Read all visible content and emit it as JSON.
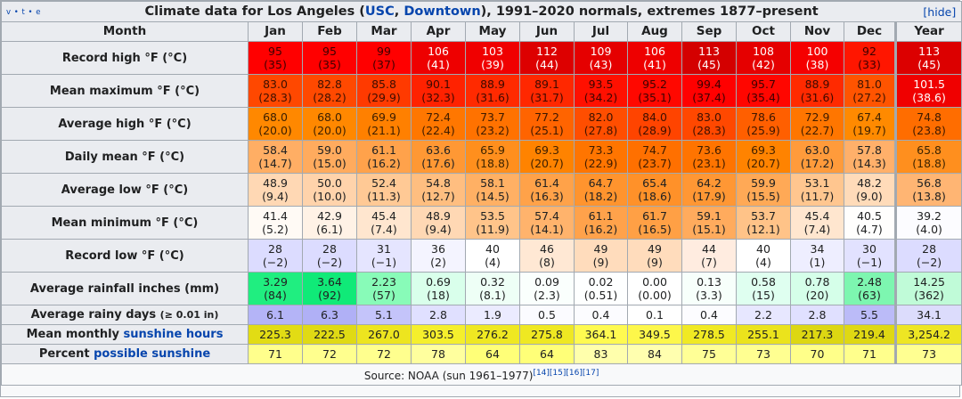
{
  "title": {
    "vte": "v • t • e",
    "prefix": "Climate data for Los Angeles (",
    "link1": "USC",
    "sep": ", ",
    "link2": "Downtown",
    "suffix": "), 1991–2020 normals, extremes 1877–present",
    "hide": "[hide]"
  },
  "header": {
    "label": "Month",
    "months": [
      "Jan",
      "Feb",
      "Mar",
      "Apr",
      "May",
      "Jun",
      "Jul",
      "Aug",
      "Sep",
      "Oct",
      "Nov",
      "Dec"
    ],
    "year": "Year"
  },
  "rows": [
    {
      "label": "Record high °F (°C)",
      "values": [
        "95",
        "95",
        "99",
        "106",
        "103",
        "112",
        "109",
        "106",
        "113",
        "108",
        "100",
        "92",
        "113"
      ],
      "sub": [
        "(35)",
        "(35)",
        "(37)",
        "(41)",
        "(39)",
        "(44)",
        "(43)",
        "(41)",
        "(45)",
        "(42)",
        "(38)",
        "(33)",
        "(45)"
      ],
      "colors": [
        "#ff0000",
        "#ff0000",
        "#ff0000",
        "#ee0000",
        "#f00000",
        "#dd0000",
        "#e50000",
        "#ee0000",
        "#d40000",
        "#e50000",
        "#f50000",
        "#ff1600",
        "#dc0000"
      ],
      "text_colors": [
        "#3d0000",
        "#3d0000",
        "#3d0000",
        "#ffffff",
        "#ffffff",
        "#ffffff",
        "#ffffff",
        "#ffffff",
        "#ffffff",
        "#ffffff",
        "#ffffff",
        "#3d0000",
        "#ffffff"
      ]
    },
    {
      "label": "Mean maximum °F (°C)",
      "values": [
        "83.0",
        "82.8",
        "85.8",
        "90.1",
        "88.9",
        "89.1",
        "93.5",
        "95.2",
        "99.4",
        "95.7",
        "88.9",
        "81.0",
        "101.5"
      ],
      "sub": [
        "(28.3)",
        "(28.2)",
        "(29.9)",
        "(32.3)",
        "(31.6)",
        "(31.7)",
        "(34.2)",
        "(35.1)",
        "(37.4)",
        "(35.4)",
        "(31.6)",
        "(27.2)",
        "(38.6)"
      ],
      "colors": [
        "#ff4800",
        "#ff4900",
        "#ff3a00",
        "#ff2200",
        "#ff2a00",
        "#ff2800",
        "#ff1000",
        "#ff0800",
        "#ff0000",
        "#ff0600",
        "#ff2a00",
        "#ff5400",
        "#f00000"
      ],
      "text_colors": [
        "#3d1000",
        "#3d1000",
        "#3d0d00",
        "#3d0800",
        "#3d0900",
        "#3d0900",
        "#3d0400",
        "#3d0200",
        "#3d0000",
        "#3d0100",
        "#3d0900",
        "#3d1300",
        "#ffffff"
      ]
    },
    {
      "label": "Average high °F (°C)",
      "values": [
        "68.0",
        "68.0",
        "69.9",
        "72.4",
        "73.7",
        "77.2",
        "82.0",
        "84.0",
        "83.0",
        "78.6",
        "72.9",
        "67.4",
        "74.8"
      ],
      "sub": [
        "(20.0)",
        "(20.0)",
        "(21.1)",
        "(22.4)",
        "(23.2)",
        "(25.1)",
        "(27.8)",
        "(28.9)",
        "(28.3)",
        "(25.9)",
        "(22.7)",
        "(19.7)",
        "(23.8)"
      ],
      "colors": [
        "#ff8800",
        "#ff8800",
        "#ff8000",
        "#ff7700",
        "#ff7200",
        "#ff6400",
        "#ff4e00",
        "#ff4400",
        "#ff4800",
        "#ff5f00",
        "#ff7600",
        "#ff8a00",
        "#ff6d00"
      ],
      "text_colors": [
        "#3d2000",
        "#3d2000",
        "#3d1e00",
        "#3d1b00",
        "#3d1a00",
        "#3d1700",
        "#3d1200",
        "#3d0f00",
        "#3d1000",
        "#3d1600",
        "#3d1b00",
        "#3d2100",
        "#3d1900"
      ]
    },
    {
      "label": "Daily mean °F (°C)",
      "values": [
        "58.4",
        "59.0",
        "61.1",
        "63.6",
        "65.9",
        "69.3",
        "73.3",
        "74.7",
        "73.6",
        "69.3",
        "63.0",
        "57.8",
        "65.8"
      ],
      "sub": [
        "(14.7)",
        "(15.0)",
        "(16.2)",
        "(17.6)",
        "(18.8)",
        "(20.7)",
        "(22.9)",
        "(23.7)",
        "(23.1)",
        "(20.7)",
        "(17.2)",
        "(14.3)",
        "(18.8)"
      ],
      "colors": [
        "#ffae64",
        "#ffab5e",
        "#ffa24b",
        "#ff9834",
        "#ff8f1d",
        "#ff8300",
        "#ff7500",
        "#ff7000",
        "#ff7400",
        "#ff8300",
        "#ff9b3b",
        "#ffb06a",
        "#ff8f1e"
      ],
      "text_colors": [
        "#202122",
        "#202122",
        "#202122",
        "#202122",
        "#3d2400",
        "#3d1f00",
        "#3d1b00",
        "#3d1a00",
        "#3d1b00",
        "#3d1f00",
        "#202122",
        "#202122",
        "#3d2400"
      ]
    },
    {
      "label": "Average low °F (°C)",
      "values": [
        "48.9",
        "50.0",
        "52.4",
        "54.8",
        "58.1",
        "61.4",
        "64.7",
        "65.4",
        "64.2",
        "59.9",
        "53.1",
        "48.2",
        "56.8"
      ],
      "sub": [
        "(9.4)",
        "(10.0)",
        "(11.3)",
        "(12.7)",
        "(14.5)",
        "(16.3)",
        "(18.2)",
        "(18.6)",
        "(17.9)",
        "(15.5)",
        "(11.7)",
        "(9.0)",
        "(13.8)"
      ],
      "colors": [
        "#ffd8b4",
        "#ffd3ab",
        "#ffc995",
        "#ffbe80",
        "#ffb064",
        "#ffa249",
        "#ff942e",
        "#ff9129",
        "#ff9734",
        "#ffa956",
        "#ffc68f",
        "#ffdbb9",
        "#ffb573"
      ],
      "text_colors": [
        "#202122",
        "#202122",
        "#202122",
        "#202122",
        "#202122",
        "#202122",
        "#202122",
        "#202122",
        "#202122",
        "#202122",
        "#202122",
        "#202122",
        "#202122"
      ]
    },
    {
      "label": "Mean minimum °F (°C)",
      "values": [
        "41.4",
        "42.9",
        "45.4",
        "48.9",
        "53.5",
        "57.4",
        "61.1",
        "61.7",
        "59.1",
        "53.7",
        "45.4",
        "40.5",
        "39.2"
      ],
      "sub": [
        "(5.2)",
        "(6.1)",
        "(7.4)",
        "(9.4)",
        "(11.9)",
        "(14.1)",
        "(16.2)",
        "(16.5)",
        "(15.1)",
        "(12.1)",
        "(7.4)",
        "(4.7)",
        "(4.0)"
      ],
      "colors": [
        "#fffaf5",
        "#fff2e6",
        "#ffe6cf",
        "#ffd8b4",
        "#ffc48a",
        "#ffb36c",
        "#ffa24b",
        "#ffa045",
        "#ffab5d",
        "#ffc388",
        "#ffe6cf",
        "#fffefd",
        "#fcfcff"
      ],
      "text_colors": [
        "#202122",
        "#202122",
        "#202122",
        "#202122",
        "#202122",
        "#202122",
        "#202122",
        "#202122",
        "#202122",
        "#202122",
        "#202122",
        "#202122",
        "#202122"
      ]
    },
    {
      "label": "Record low °F (°C)",
      "values": [
        "28",
        "28",
        "31",
        "36",
        "40",
        "46",
        "49",
        "49",
        "44",
        "40",
        "34",
        "30",
        "28"
      ],
      "sub": [
        "(−2)",
        "(−2)",
        "(−1)",
        "(2)",
        "(4)",
        "(8)",
        "(9)",
        "(9)",
        "(7)",
        "(4)",
        "(1)",
        "(−1)",
        "(−2)"
      ],
      "colors": [
        "#dcdcff",
        "#dcdcff",
        "#e5e5ff",
        "#f4f4ff",
        "#ffffff",
        "#ffe8d4",
        "#ffdcbc",
        "#ffdcbc",
        "#ffece0",
        "#ffffff",
        "#eeeeff",
        "#e2e2ff",
        "#dcdcff"
      ],
      "text_colors": [
        "#202122",
        "#202122",
        "#202122",
        "#202122",
        "#202122",
        "#202122",
        "#202122",
        "#202122",
        "#202122",
        "#202122",
        "#202122",
        "#202122",
        "#202122"
      ]
    },
    {
      "label": "Average rainfall inches (mm)",
      "values": [
        "3.29",
        "3.64",
        "2.23",
        "0.69",
        "0.32",
        "0.09",
        "0.02",
        "0.00",
        "0.13",
        "0.58",
        "0.78",
        "2.48",
        "14.25"
      ],
      "sub": [
        "(84)",
        "(92)",
        "(57)",
        "(18)",
        "(8.1)",
        "(2.3)",
        "(0.51)",
        "(0.00)",
        "(3.3)",
        "(15)",
        "(20)",
        "(63)",
        "(362)"
      ],
      "colors": [
        "#20ee80",
        "#10ea78",
        "#88fbb8",
        "#d9ffeb",
        "#eefff6",
        "#fafffd",
        "#feffff",
        "#ffffff",
        "#f7fffb",
        "#dffff0",
        "#d5ffe9",
        "#7df6b0",
        "#c0fbd8"
      ],
      "text_colors": [
        "#202122",
        "#202122",
        "#202122",
        "#202122",
        "#202122",
        "#202122",
        "#202122",
        "#202122",
        "#202122",
        "#202122",
        "#202122",
        "#202122",
        "#202122"
      ]
    },
    {
      "label": "Average rainy days",
      "label_small": "(≥ 0.01 in)",
      "values": [
        "6.1",
        "6.3",
        "5.1",
        "2.8",
        "1.9",
        "0.5",
        "0.4",
        "0.1",
        "0.4",
        "2.2",
        "2.8",
        "5.5",
        "34.1"
      ],
      "colors": [
        "#b4b4f7",
        "#b0b0f6",
        "#c4c4fa",
        "#e0e0ff",
        "#ebebff",
        "#fbfbff",
        "#fcfcff",
        "#ffffff",
        "#fcfcff",
        "#e7e7ff",
        "#e0e0ff",
        "#bbbbf8",
        "#dcdcfc"
      ]
    },
    {
      "label": "Mean monthly",
      "label_link": "sunshine hours",
      "values": [
        "225.3",
        "222.5",
        "267.0",
        "303.5",
        "276.2",
        "275.8",
        "364.1",
        "349.5",
        "278.5",
        "255.1",
        "217.3",
        "219.4",
        "3,254.2"
      ],
      "colors": [
        "#e2dc14",
        "#e0da14",
        "#ede51f",
        "#f5ef2c",
        "#efe822",
        "#efe822",
        "#fffa50",
        "#fdf74a",
        "#f0e923",
        "#ebe31c",
        "#ddd712",
        "#dfd813",
        "#eee623"
      ]
    },
    {
      "label": "Percent",
      "label_link": "possible sunshine",
      "values": [
        "71",
        "72",
        "72",
        "78",
        "64",
        "64",
        "83",
        "84",
        "75",
        "73",
        "70",
        "71",
        "73"
      ],
      "colors": [
        "#ffff8c",
        "#ffff8e",
        "#ffff8e",
        "#ffff9e",
        "#ffff78",
        "#ffff78",
        "#ffffac",
        "#ffffaf",
        "#ffff96",
        "#ffff91",
        "#ffff89",
        "#ffff8c",
        "#ffff91"
      ]
    }
  ],
  "footer": {
    "source": "Source: NOAA (sun 1961–1977)",
    "refs": "[14][15][16][17]"
  }
}
